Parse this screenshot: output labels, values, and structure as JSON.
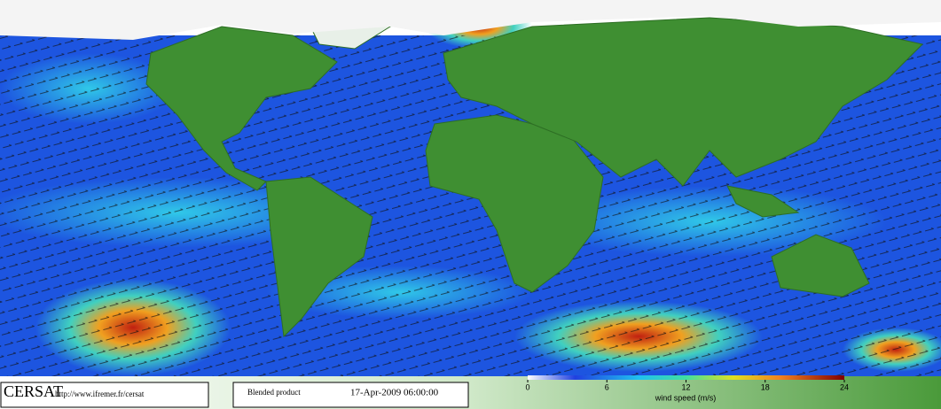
{
  "map": {
    "logo": "CERSAT",
    "url": "http://www.ifremer.fr/cersat",
    "product": "Blended product",
    "date": "17-Apr-2009 06:00:00"
  },
  "colorbar": {
    "lim": [
      0,
      24
    ],
    "ticks": [
      0,
      6,
      12,
      18,
      24
    ],
    "label": "wind speed (m/s)"
  }
}
